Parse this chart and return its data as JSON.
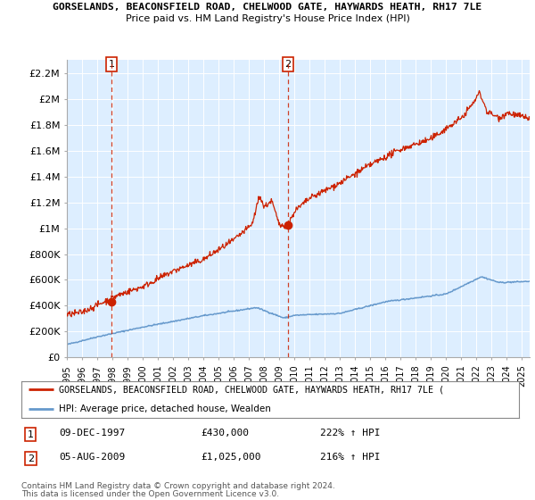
{
  "title_line1": "GORSELANDS, BEACONSFIELD ROAD, CHELWOOD GATE, HAYWARDS HEATH, RH17 7LE",
  "title_line2": "Price paid vs. HM Land Registry's House Price Index (HPI)",
  "legend_line1": "GORSELANDS, BEACONSFIELD ROAD, CHELWOOD GATE, HAYWARDS HEATH, RH17 7LE (",
  "legend_line2": "HPI: Average price, detached house, Wealden",
  "annotation1": {
    "label": "1",
    "date": "09-DEC-1997",
    "price": 430000,
    "pct": "222% ↑ HPI"
  },
  "annotation2": {
    "label": "2",
    "date": "05-AUG-2009",
    "price": 1025000,
    "pct": "216% ↑ HPI"
  },
  "footer1": "Contains HM Land Registry data © Crown copyright and database right 2024.",
  "footer2": "This data is licensed under the Open Government Licence v3.0.",
  "yticks": [
    0,
    200000,
    400000,
    600000,
    800000,
    1000000,
    1200000,
    1400000,
    1600000,
    1800000,
    2000000,
    2200000
  ],
  "ytick_labels": [
    "£0",
    "£200K",
    "£400K",
    "£600K",
    "£800K",
    "£1M",
    "£1.2M",
    "£1.4M",
    "£1.6M",
    "£1.8M",
    "£2M",
    "£2.2M"
  ],
  "hpi_color": "#6699cc",
  "price_color": "#cc2200",
  "background_color": "#ddeeff",
  "vline_color": "#cc2200",
  "sale1_x": 1997.94,
  "sale1_y": 430000,
  "sale2_x": 2009.58,
  "sale2_y": 1025000,
  "xmin": 1995.0,
  "xmax": 2025.5,
  "ymin": 0,
  "ymax": 2300000
}
